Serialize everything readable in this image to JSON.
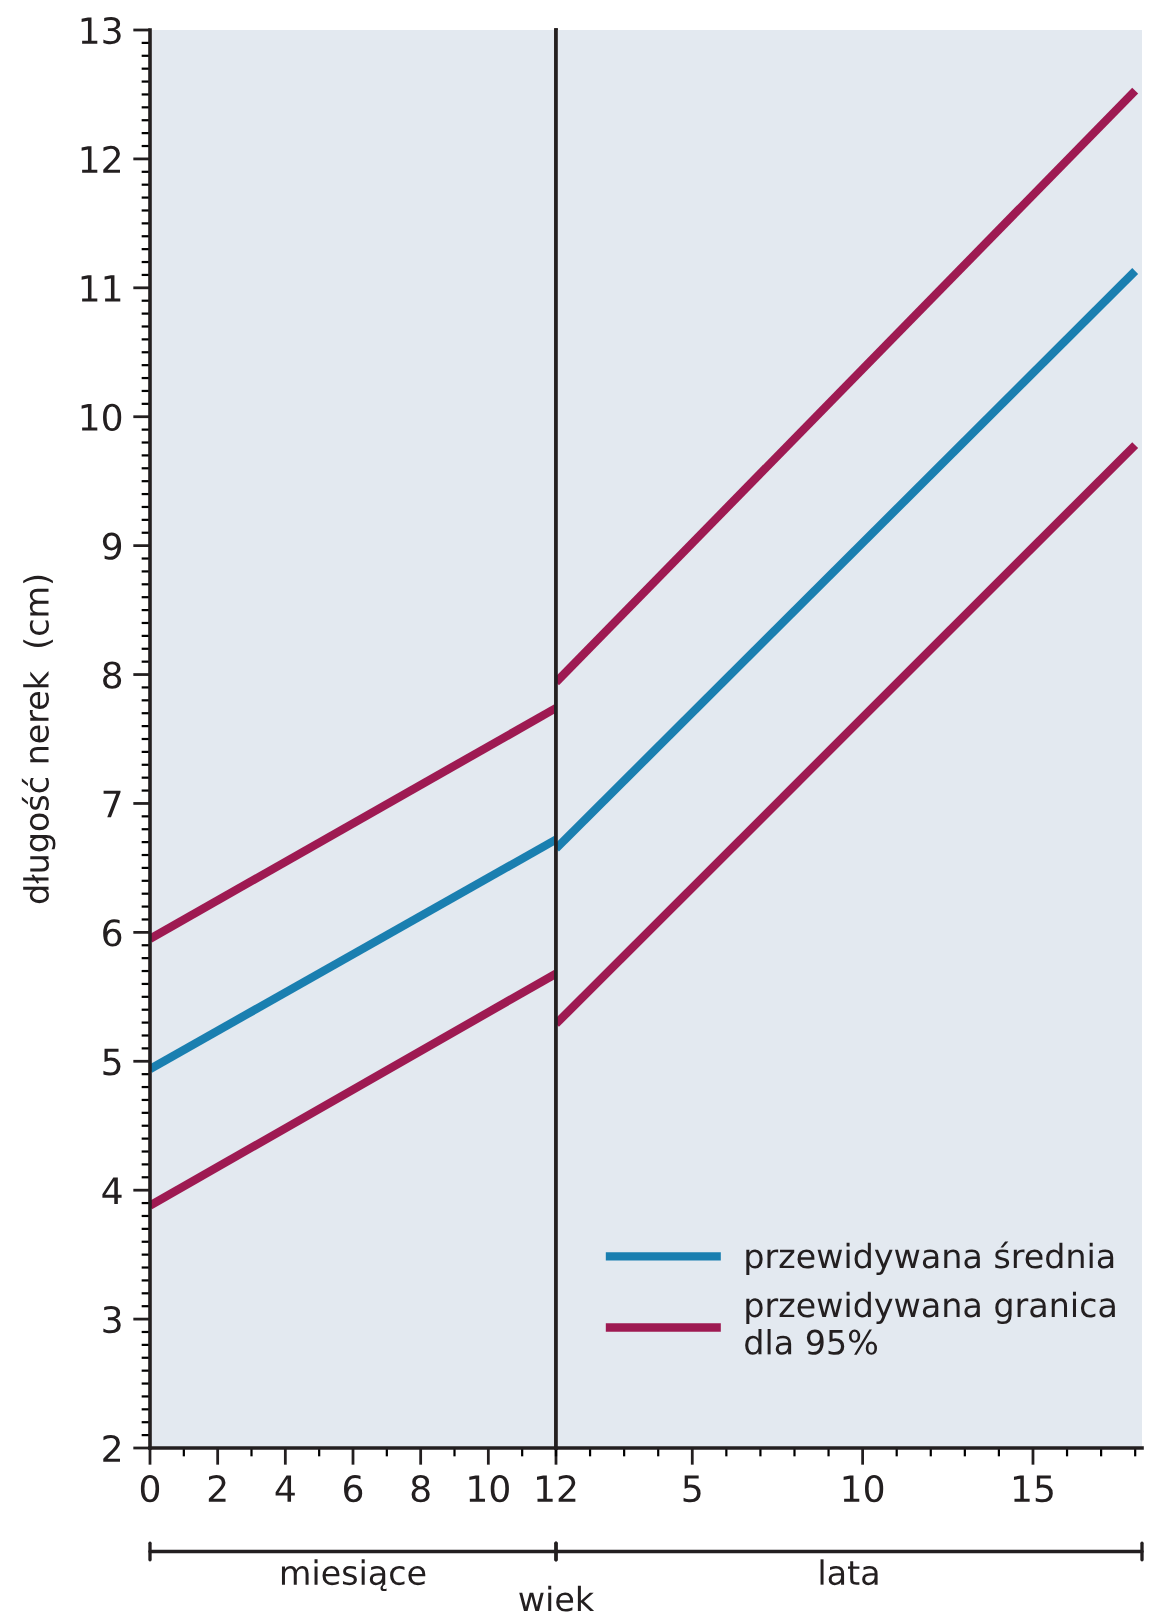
{
  "chart_data": [
    {
      "type": "line",
      "ylabel": "długość nerek  (cm)",
      "xlabel": "miesiące",
      "x": [
        0,
        12
      ],
      "series": [
        {
          "color": "#9e1a52",
          "values": [
            5.95,
            7.74
          ]
        },
        {
          "color": "#1a7fb0",
          "values": [
            4.94,
            6.72
          ]
        },
        {
          "color": "#9e1a52",
          "values": [
            3.88,
            5.68
          ]
        }
      ],
      "xlim": [
        0,
        12
      ],
      "xticks": [
        0,
        2,
        4,
        6,
        8,
        10,
        12
      ],
      "ylim": [
        2,
        13
      ],
      "yticks": [
        2,
        3,
        4,
        5,
        6,
        7,
        8,
        9,
        10,
        11,
        12,
        13
      ],
      "annotations": [
        "wiek"
      ],
      "legend": false,
      "grid": false
    },
    {
      "type": "line",
      "xlabel": "lata",
      "x": [
        1,
        18
      ],
      "series": [
        {
          "name": "przewidywana granica\ndla 95%",
          "color": "#9e1a52",
          "values": [
            7.94,
            12.53
          ]
        },
        {
          "name": "przewidywana średnia",
          "color": "#1a7fb0",
          "values": [
            6.65,
            11.13
          ]
        },
        {
          "color": "#9e1a52",
          "values": [
            5.29,
            9.78
          ]
        }
      ],
      "xlim": [
        1,
        18.2
      ],
      "xticks": [
        5,
        10,
        15
      ],
      "ylim": [
        2,
        13
      ],
      "tick_labels": "x",
      "legend": "bottom right",
      "grid": false
    }
  ]
}
